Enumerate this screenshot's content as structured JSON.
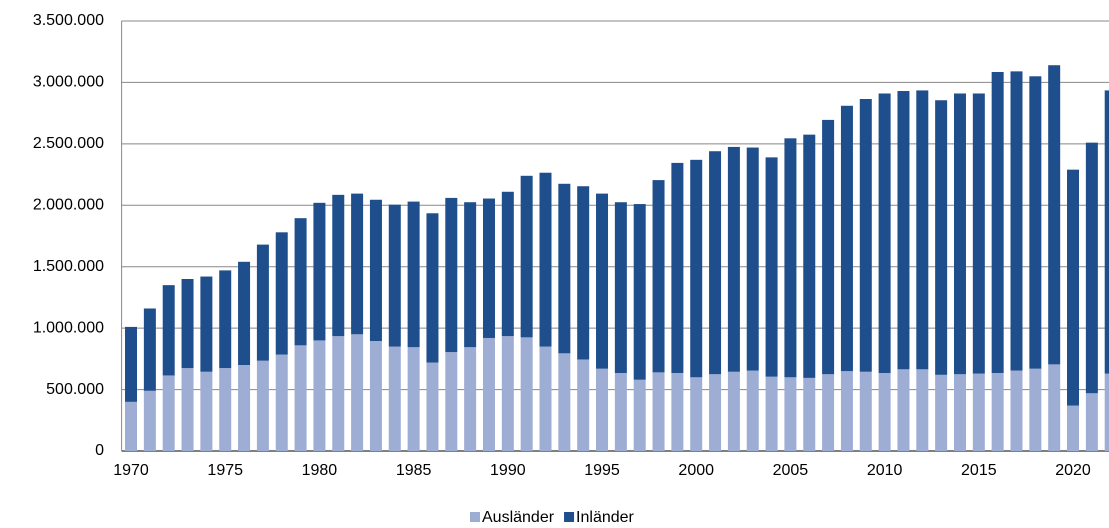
{
  "chart_data": {
    "type": "bar",
    "stacked": true,
    "categories": [
      "1970",
      null,
      null,
      null,
      null,
      "1975",
      null,
      null,
      null,
      null,
      "1980",
      null,
      null,
      null,
      null,
      "1985",
      null,
      null,
      null,
      null,
      "1990",
      null,
      null,
      null,
      null,
      "1995",
      null,
      null,
      null,
      null,
      "2000",
      null,
      null,
      null,
      null,
      "2005",
      null,
      null,
      null,
      null,
      "2010",
      null,
      null,
      null,
      null,
      "2015",
      null,
      null,
      null,
      null,
      "2020",
      null,
      null
    ],
    "series": [
      {
        "name": "Ausländer",
        "color": "#9eadd4",
        "values": [
          400000,
          490000,
          615000,
          675000,
          645000,
          675000,
          700000,
          735000,
          785000,
          860000,
          900000,
          935000,
          950000,
          895000,
          850000,
          845000,
          720000,
          805000,
          845000,
          920000,
          935000,
          925000,
          850000,
          795000,
          745000,
          670000,
          635000,
          580000,
          640000,
          635000,
          600000,
          625000,
          645000,
          655000,
          605000,
          600000,
          595000,
          625000,
          650000,
          645000,
          635000,
          665000,
          665000,
          620000,
          625000,
          630000,
          635000,
          655000,
          670000,
          705000,
          370000,
          470000,
          630000
        ]
      },
      {
        "name": "Inländer",
        "color": "#1f4e8c",
        "values": [
          610000,
          670000,
          735000,
          725000,
          775000,
          795000,
          840000,
          945000,
          995000,
          1035000,
          1120000,
          1150000,
          1145000,
          1150000,
          1155000,
          1185000,
          1215000,
          1255000,
          1180000,
          1135000,
          1175000,
          1315000,
          1415000,
          1380000,
          1410000,
          1425000,
          1390000,
          1430000,
          1565000,
          1710000,
          1770000,
          1815000,
          1830000,
          1815000,
          1785000,
          1945000,
          1980000,
          2070000,
          2160000,
          2220000,
          2275000,
          2265000,
          2270000,
          2235000,
          2285000,
          2280000,
          2450000,
          2435000,
          2380000,
          2435000,
          1920000,
          2040000,
          2305000
        ]
      }
    ],
    "ylim": [
      0,
      3500000
    ],
    "yticks": [
      0,
      {
        "value": 500000,
        "label": "500.000"
      },
      {
        "value": 1000000,
        "label": "1.000.000"
      },
      {
        "value": 1500000,
        "label": "1.500.000"
      },
      {
        "value": 2000000,
        "label": "2.000.000"
      },
      {
        "value": 2500000,
        "label": "2.500.000"
      },
      {
        "value": 3000000,
        "label": "3.000.000"
      },
      {
        "value": 3500000,
        "label": "3.500.000"
      }
    ],
    "grid": true,
    "legend": "bottom"
  }
}
